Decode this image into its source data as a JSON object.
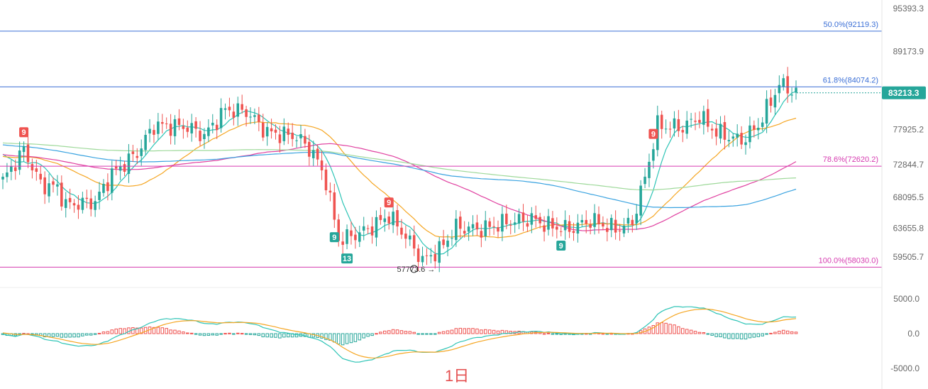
{
  "chart_data": {
    "type": "candlestick",
    "period_label": "1日",
    "price_axis": {
      "ticks": [
        "95393.3",
        "89173.9",
        "77925.2",
        "72844.7",
        "68095.5",
        "63655.8",
        "59505.7"
      ],
      "tick_values": [
        95393.3,
        89173.9,
        77925.2,
        72844.7,
        68095.5,
        63655.8,
        59505.7
      ]
    },
    "macd_axis": {
      "ticks": [
        "5000.0",
        "0.0",
        "-5000.0"
      ],
      "tick_values": [
        5000,
        0,
        -5000
      ]
    },
    "current_price": {
      "label": "83213.3",
      "value": 83213.3,
      "color": "#26a69a"
    },
    "fib_levels": [
      {
        "label": "50.0%(92119.3)",
        "value": 92119.3,
        "color": "#3b6fd6"
      },
      {
        "label": "61.8%(84074.2)",
        "value": 84074.2,
        "color": "#3b6fd6"
      },
      {
        "label": "78.6%(72620.2)",
        "value": 72620.2,
        "color": "#d63bb0"
      },
      {
        "label": "100.0%(58030.0)",
        "value": 58030.0,
        "color": "#d63bb0"
      }
    ],
    "low_annotation": {
      "label": "57773.6 →",
      "value": 57773.6,
      "index": 100
    },
    "td_markers": [
      {
        "text": "9",
        "index": 5,
        "type": "top"
      },
      {
        "text": "9",
        "index": 92,
        "type": "top"
      },
      {
        "text": "9",
        "index": 79,
        "type": "bottom"
      },
      {
        "text": "13",
        "index": 82,
        "type": "bottom"
      },
      {
        "text": "9",
        "index": 133,
        "type": "bottom"
      },
      {
        "text": "9",
        "index": 155,
        "type": "top"
      }
    ],
    "ma_colors": [
      "#2ec4b6",
      "#f5a623",
      "#e040a0",
      "#3aa3e0",
      "#9ed99a"
    ],
    "up_color": "#26a69a",
    "down_color": "#ef5350",
    "candle_count": 190
  }
}
